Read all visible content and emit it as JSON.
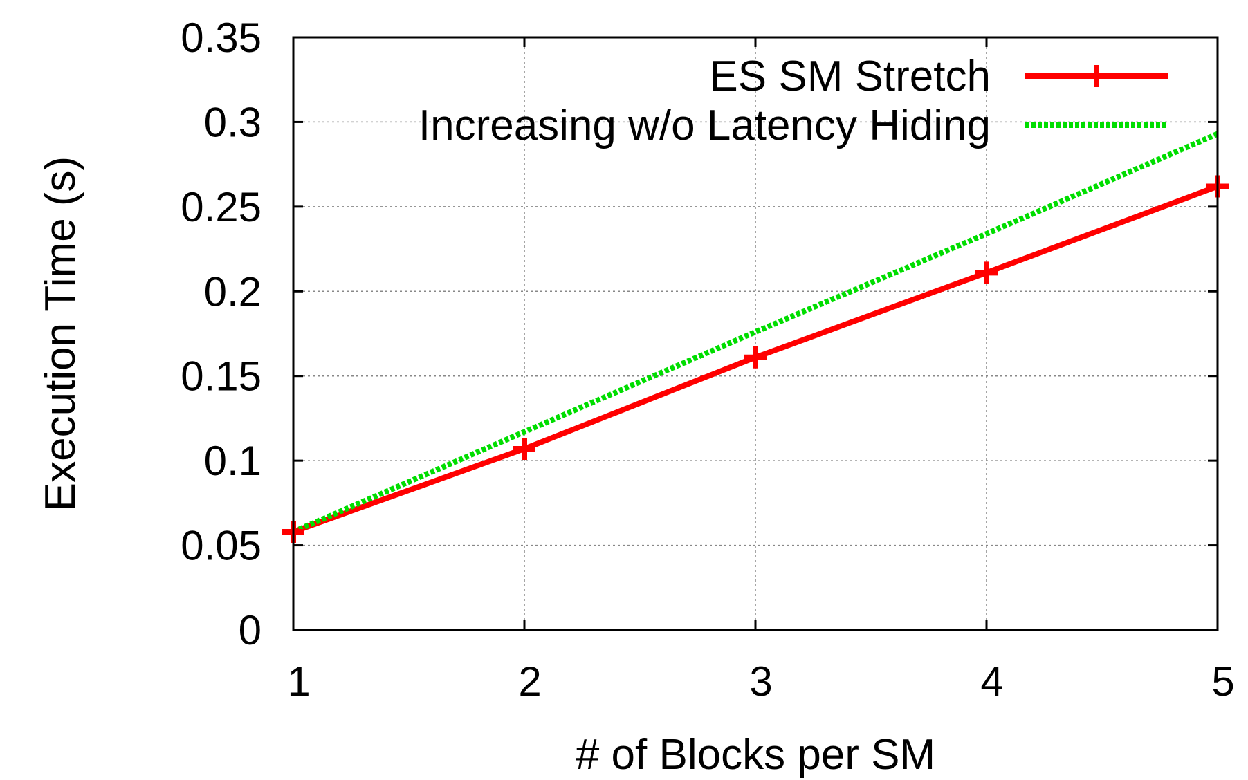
{
  "chart_data": {
    "type": "line",
    "title": "",
    "xlabel": "# of Blocks per SM",
    "ylabel": "Execution Time (s)",
    "xlim": [
      1,
      5
    ],
    "ylim": [
      0,
      0.35
    ],
    "x_ticks": [
      "1",
      "2",
      "3",
      "4",
      "5"
    ],
    "y_ticks": [
      "0",
      "0.05",
      "0.1",
      "0.15",
      "0.2",
      "0.25",
      "0.3",
      "0.35"
    ],
    "grid": true,
    "legend_position": "top-right",
    "x": [
      1,
      2,
      3,
      4,
      5
    ],
    "series": [
      {
        "name": "ES SM Stretch",
        "values": [
          0.058,
          0.107,
          0.161,
          0.211,
          0.262
        ],
        "color": "#ff0000",
        "line_style": "solid",
        "marker": "plus"
      },
      {
        "name": "Increasing w/o Latency Hiding",
        "values": [
          0.058,
          0.117,
          0.176,
          0.234,
          0.293
        ],
        "color": "#00dd00",
        "line_style": "dotted",
        "marker": "none"
      }
    ]
  }
}
